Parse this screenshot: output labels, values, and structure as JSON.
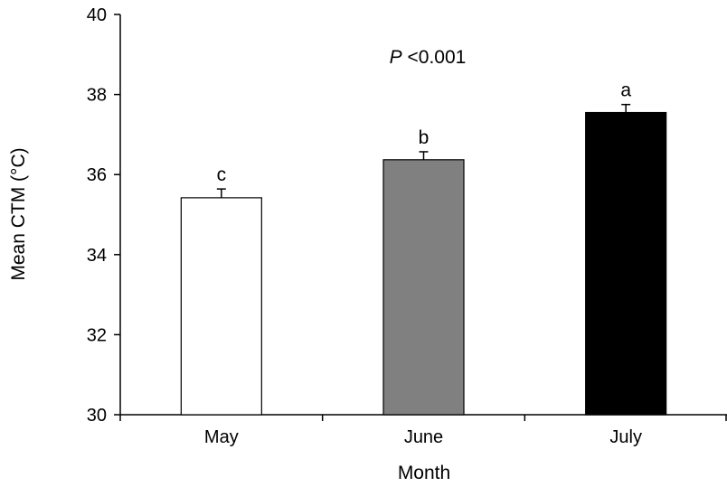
{
  "chart_data": {
    "type": "bar",
    "title": "",
    "xlabel": "Month",
    "ylabel": "Mean CTM (°C)",
    "ylim": [
      30,
      40
    ],
    "yticks": [
      30,
      32,
      34,
      36,
      38,
      40
    ],
    "categories": [
      "May",
      "June",
      "July"
    ],
    "values": [
      35.42,
      36.37,
      37.55
    ],
    "errors": [
      0.22,
      0.2,
      0.2
    ],
    "significance_letters": [
      "c",
      "b",
      "a"
    ],
    "bar_colors": [
      "#ffffff",
      "#808080",
      "#000000"
    ],
    "annotation": {
      "p_symbol": "P",
      "p_text": " <0.001"
    },
    "grid": false,
    "legend": "none"
  }
}
